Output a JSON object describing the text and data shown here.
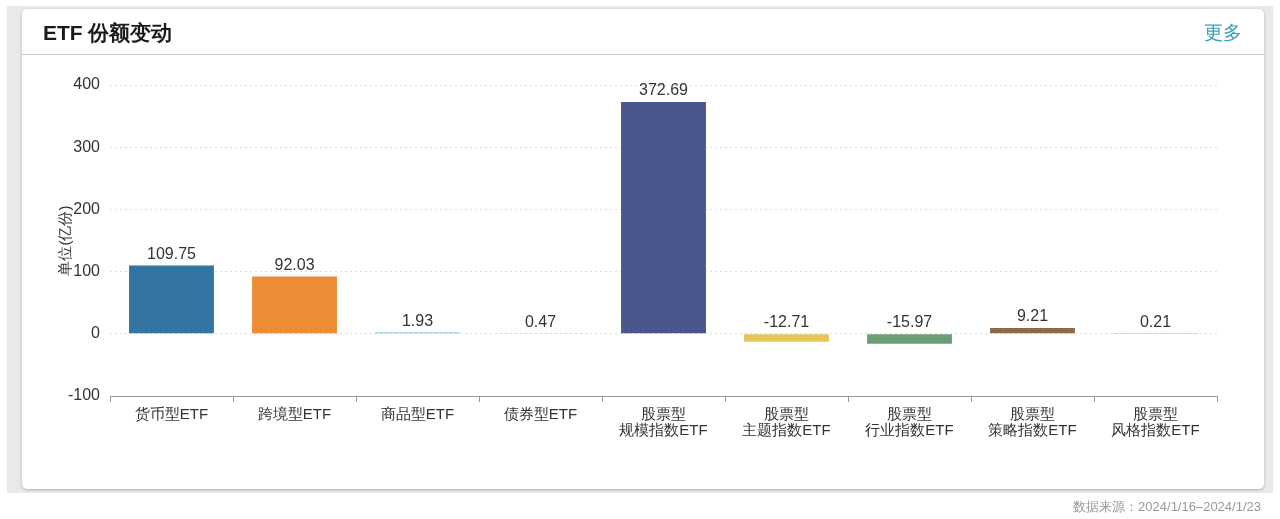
{
  "chart_data": {
    "type": "bar",
    "title": "ETF 份额变动",
    "ylabel": "单位(亿份)",
    "categories": [
      "货币型ETF",
      "跨境型ETF",
      "商品型ETF",
      "债券型ETF",
      "股票型规模指数ETF",
      "股票型主题指数ETF",
      "股票型行业指数ETF",
      "股票型策略指数ETF",
      "股票型风格指数ETF"
    ],
    "values": [
      109.75,
      92.03,
      1.93,
      0.47,
      372.69,
      -12.71,
      -15.97,
      9.21,
      0.21
    ],
    "colors": [
      "#3274a2",
      "#ec8c35",
      "#66b9cc",
      "#f0b8c2",
      "#4a568c",
      "#e5c558",
      "#6a9e74",
      "#8c6a4a",
      "#c9b8d8"
    ],
    "ylim": [
      -100,
      400
    ],
    "yticks": [
      -100,
      0,
      100,
      200,
      300,
      400
    ],
    "grid": "y",
    "data_labels": true,
    "annotations": [
      "更多",
      "数据来源：2024/1/16–2024/1/23"
    ]
  }
}
